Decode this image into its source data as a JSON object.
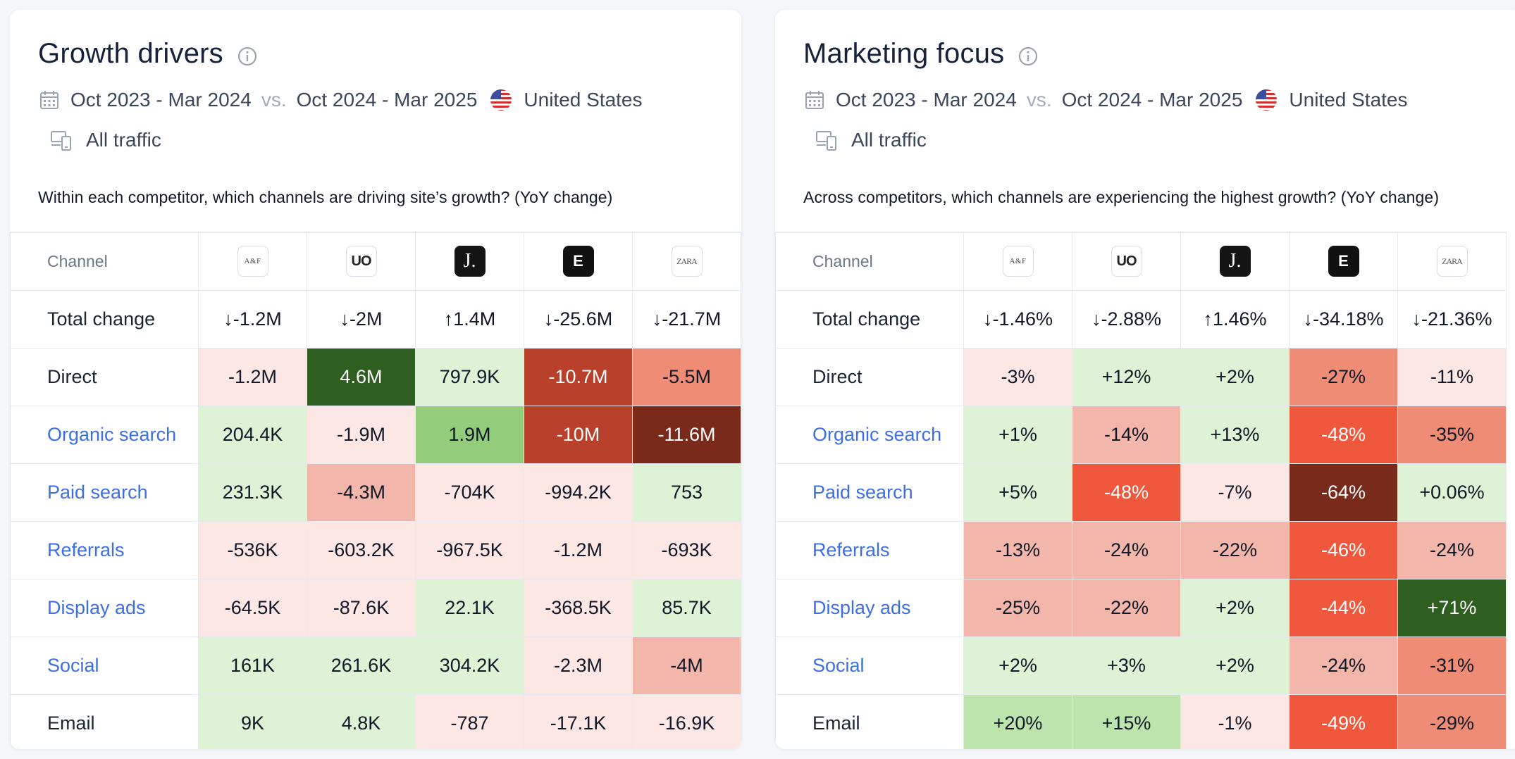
{
  "colors": {
    "l1": "#fce7e4",
    "l2": "#f2b7aa",
    "l3": "#ef8c76",
    "l4": "#ef583c",
    "l5": "#b9402a",
    "l6": "#7a2a1b",
    "g1": "#def2d6",
    "g2": "#bde4ad",
    "g3": "#93cc7a",
    "g4": "#2f5e21",
    "white": "#ffffff"
  },
  "left": {
    "title": "Growth drivers",
    "date_a": "Oct 2023 - Mar 2024",
    "vs": "vs.",
    "date_b": "Oct 2024 - Mar 2025",
    "country": "United States",
    "traffic": "All traffic",
    "question": "Within each competitor, which channels are driving site’s growth? (YoY change)",
    "header": "Channel",
    "logos": [
      {
        "text": "A&F",
        "style": "af",
        "icon": "abercrombie-logo-icon"
      },
      {
        "text": "UO",
        "style": "uo",
        "icon": "urban-outfitters-logo-icon"
      },
      {
        "text": "J.",
        "style": "jc",
        "icon": "jcrew-logo-icon"
      },
      {
        "text": "E",
        "style": "dark",
        "icon": "express-logo-icon"
      },
      {
        "text": "ZARA",
        "style": "zr",
        "icon": "zara-logo-icon"
      }
    ],
    "total": {
      "label": "Total change",
      "values": [
        {
          "text": "↓-1.2M",
          "dir": "down"
        },
        {
          "text": "↓-2M",
          "dir": "down"
        },
        {
          "text": "↑1.4M",
          "dir": "up"
        },
        {
          "text": "↓-25.6M",
          "dir": "down"
        },
        {
          "text": "↓-21.7M",
          "dir": "down"
        }
      ]
    },
    "rows": [
      {
        "label": "Direct",
        "link": false,
        "cells": [
          {
            "v": "-1.2M",
            "c": "l1"
          },
          {
            "v": "4.6M",
            "c": "g4"
          },
          {
            "v": "797.9K",
            "c": "g1"
          },
          {
            "v": "-10.7M",
            "c": "l5"
          },
          {
            "v": "-5.5M",
            "c": "l3"
          }
        ]
      },
      {
        "label": "Organic search",
        "link": true,
        "cells": [
          {
            "v": "204.4K",
            "c": "g1"
          },
          {
            "v": "-1.9M",
            "c": "l1"
          },
          {
            "v": "1.9M",
            "c": "g3"
          },
          {
            "v": "-10M",
            "c": "l5"
          },
          {
            "v": "-11.6M",
            "c": "l6"
          }
        ]
      },
      {
        "label": "Paid search",
        "link": true,
        "cells": [
          {
            "v": "231.3K",
            "c": "g1"
          },
          {
            "v": "-4.3M",
            "c": "l2"
          },
          {
            "v": "-704K",
            "c": "l1"
          },
          {
            "v": "-994.2K",
            "c": "l1"
          },
          {
            "v": "753",
            "c": "g1"
          }
        ]
      },
      {
        "label": "Referrals",
        "link": true,
        "cells": [
          {
            "v": "-536K",
            "c": "l1"
          },
          {
            "v": "-603.2K",
            "c": "l1"
          },
          {
            "v": "-967.5K",
            "c": "l1"
          },
          {
            "v": "-1.2M",
            "c": "l1"
          },
          {
            "v": "-693K",
            "c": "l1"
          }
        ]
      },
      {
        "label": "Display ads",
        "link": true,
        "cells": [
          {
            "v": "-64.5K",
            "c": "l1"
          },
          {
            "v": "-87.6K",
            "c": "l1"
          },
          {
            "v": "22.1K",
            "c": "g1"
          },
          {
            "v": "-368.5K",
            "c": "l1"
          },
          {
            "v": "85.7K",
            "c": "g1"
          }
        ]
      },
      {
        "label": "Social",
        "link": true,
        "cells": [
          {
            "v": "161K",
            "c": "g1"
          },
          {
            "v": "261.6K",
            "c": "g1"
          },
          {
            "v": "304.2K",
            "c": "g1"
          },
          {
            "v": "-2.3M",
            "c": "l1"
          },
          {
            "v": "-4M",
            "c": "l2"
          }
        ]
      },
      {
        "label": "Email",
        "link": false,
        "cells": [
          {
            "v": "9K",
            "c": "g1"
          },
          {
            "v": "4.8K",
            "c": "g1"
          },
          {
            "v": "-787",
            "c": "l1"
          },
          {
            "v": "-17.1K",
            "c": "l1"
          },
          {
            "v": "-16.9K",
            "c": "l1"
          }
        ]
      }
    ]
  },
  "right": {
    "title": "Marketing focus",
    "date_a": "Oct 2023 - Mar 2024",
    "vs": "vs.",
    "date_b": "Oct 2024 - Mar 2025",
    "country": "United States",
    "traffic": "All traffic",
    "question": "Across competitors, which channels are experiencing the highest growth? (YoY change)",
    "header": "Channel",
    "logos": [
      {
        "text": "A&F",
        "style": "af",
        "icon": "abercrombie-logo-icon"
      },
      {
        "text": "UO",
        "style": "uo",
        "icon": "urban-outfitters-logo-icon"
      },
      {
        "text": "J.",
        "style": "jc",
        "icon": "jcrew-logo-icon"
      },
      {
        "text": "E",
        "style": "dark",
        "icon": "express-logo-icon"
      },
      {
        "text": "ZARA",
        "style": "zr",
        "icon": "zara-logo-icon"
      }
    ],
    "total": {
      "label": "Total change",
      "values": [
        {
          "text": "↓-1.46%",
          "dir": "down"
        },
        {
          "text": "↓-2.88%",
          "dir": "down"
        },
        {
          "text": "↑1.46%",
          "dir": "up"
        },
        {
          "text": "↓-34.18%",
          "dir": "down"
        },
        {
          "text": "↓-21.36%",
          "dir": "down"
        }
      ]
    },
    "rows": [
      {
        "label": "Direct",
        "link": false,
        "cells": [
          {
            "v": "-3%",
            "c": "l1"
          },
          {
            "v": "+12%",
            "c": "g1"
          },
          {
            "v": "+2%",
            "c": "g1"
          },
          {
            "v": "-27%",
            "c": "l3"
          },
          {
            "v": "-11%",
            "c": "l1"
          }
        ]
      },
      {
        "label": "Organic search",
        "link": true,
        "cells": [
          {
            "v": "+1%",
            "c": "g1"
          },
          {
            "v": "-14%",
            "c": "l2"
          },
          {
            "v": "+13%",
            "c": "g1"
          },
          {
            "v": "-48%",
            "c": "l4"
          },
          {
            "v": "-35%",
            "c": "l3"
          }
        ]
      },
      {
        "label": "Paid search",
        "link": true,
        "cells": [
          {
            "v": "+5%",
            "c": "g1"
          },
          {
            "v": "-48%",
            "c": "l4"
          },
          {
            "v": "-7%",
            "c": "l1"
          },
          {
            "v": "-64%",
            "c": "l6"
          },
          {
            "v": "+0.06%",
            "c": "g1"
          }
        ]
      },
      {
        "label": "Referrals",
        "link": true,
        "cells": [
          {
            "v": "-13%",
            "c": "l2"
          },
          {
            "v": "-24%",
            "c": "l2"
          },
          {
            "v": "-22%",
            "c": "l2"
          },
          {
            "v": "-46%",
            "c": "l4"
          },
          {
            "v": "-24%",
            "c": "l2"
          }
        ]
      },
      {
        "label": "Display ads",
        "link": true,
        "cells": [
          {
            "v": "-25%",
            "c": "l2"
          },
          {
            "v": "-22%",
            "c": "l2"
          },
          {
            "v": "+2%",
            "c": "g1"
          },
          {
            "v": "-44%",
            "c": "l4"
          },
          {
            "v": "+71%",
            "c": "g4"
          }
        ]
      },
      {
        "label": "Social",
        "link": true,
        "cells": [
          {
            "v": "+2%",
            "c": "g1"
          },
          {
            "v": "+3%",
            "c": "g1"
          },
          {
            "v": "+2%",
            "c": "g1"
          },
          {
            "v": "-24%",
            "c": "l2"
          },
          {
            "v": "-31%",
            "c": "l3"
          }
        ]
      },
      {
        "label": "Email",
        "link": false,
        "cells": [
          {
            "v": "+20%",
            "c": "g2"
          },
          {
            "v": "+15%",
            "c": "g2"
          },
          {
            "v": "-1%",
            "c": "l1"
          },
          {
            "v": "-49%",
            "c": "l4"
          },
          {
            "v": "-29%",
            "c": "l3"
          }
        ]
      }
    ]
  }
}
